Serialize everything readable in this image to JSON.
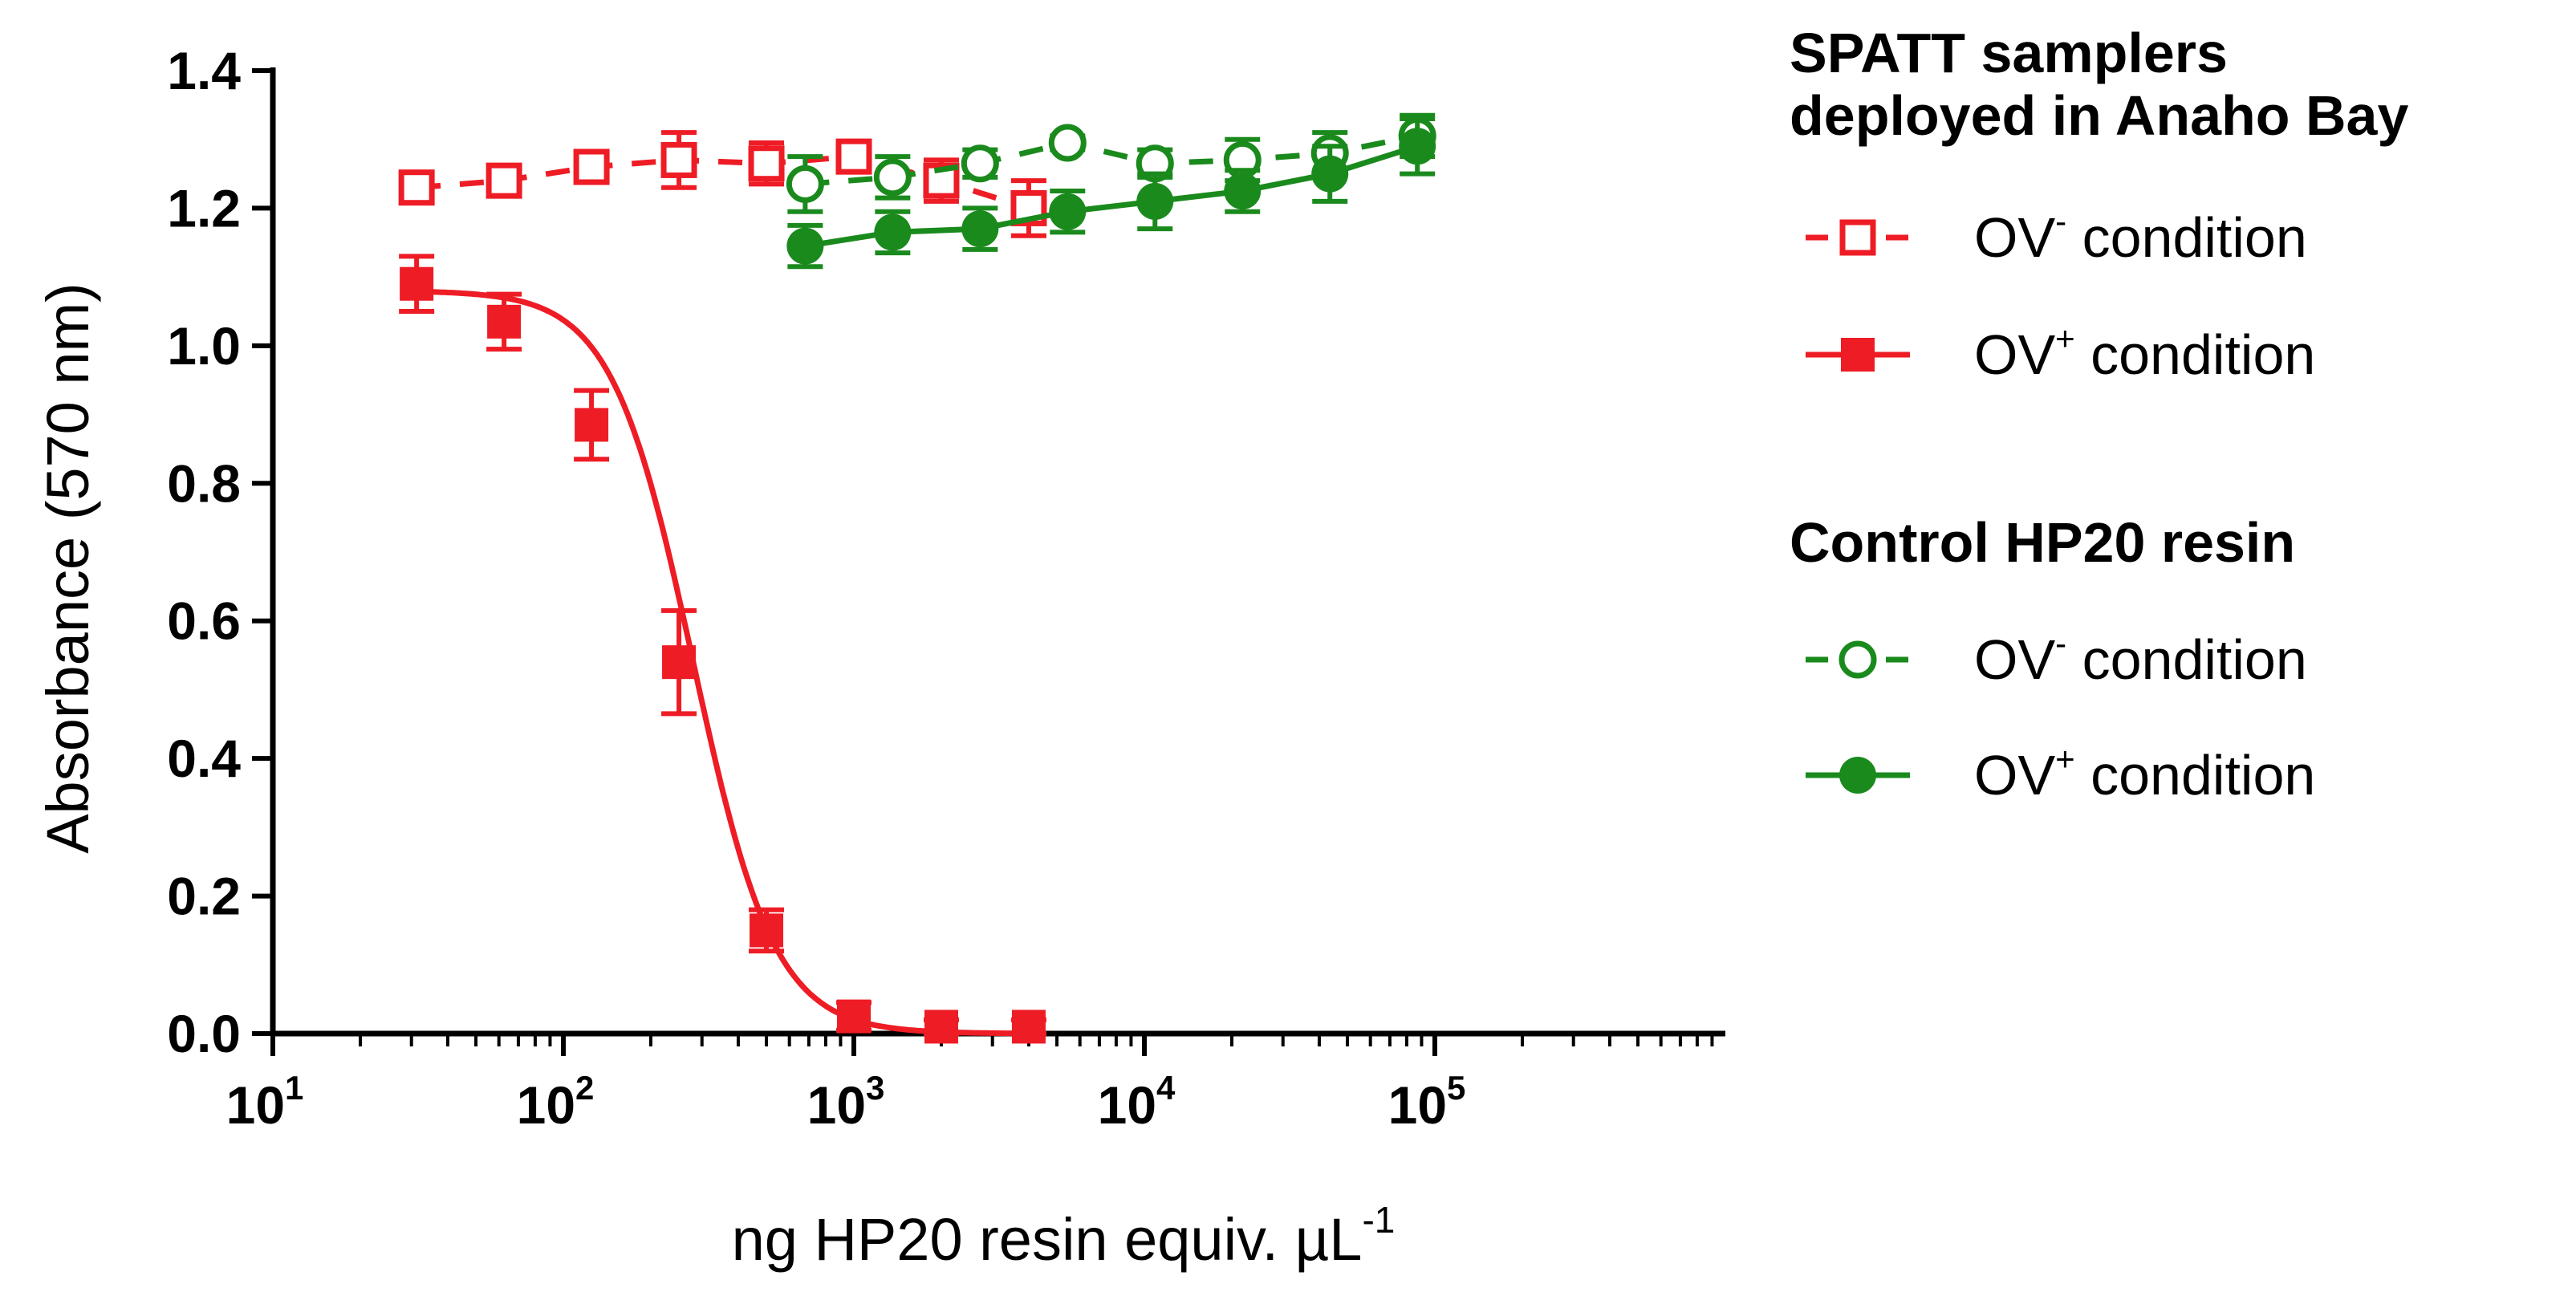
{
  "chart_data": {
    "type": "line",
    "x_scale": "log",
    "xlim": [
      10,
      1000000
    ],
    "ylim": [
      0,
      1.4
    ],
    "grid": false,
    "xlabel": {
      "main": "ng HP20 resin equiv. µL",
      "sup": "-1"
    },
    "ylabel": "Absorbance (570 nm)",
    "y_ticks": [
      "0.0",
      "0.2",
      "0.4",
      "0.6",
      "0.8",
      "1.0",
      "1.2",
      "1.4"
    ],
    "x_ticks": [
      {
        "base": "10",
        "exp": "1"
      },
      {
        "base": "10",
        "exp": "2"
      },
      {
        "base": "10",
        "exp": "3"
      },
      {
        "base": "10",
        "exp": "4"
      },
      {
        "base": "10",
        "exp": "5"
      }
    ],
    "legend_position": "right",
    "legend_groups": [
      {
        "title_line1": "SPATT samplers",
        "title_line2": "deployed in Anaho Bay"
      },
      {
        "title_line1": "Control HP20 resin",
        "title_line2": ""
      }
    ],
    "series": [
      {
        "name": {
          "prefix": "OV",
          "sup": "-",
          "suffix": " condition"
        },
        "group": 0,
        "color": "#ee1c25",
        "marker": "square",
        "filled": false,
        "line": "dashed",
        "x": [
          31.25,
          62.5,
          125,
          250,
          500,
          1000,
          2000,
          4000
        ],
        "y": [
          1.23,
          1.24,
          1.26,
          1.27,
          1.265,
          1.275,
          1.24,
          1.2
        ],
        "err": [
          0.02,
          0.01,
          0.01,
          0.04,
          0.03,
          0.01,
          0.03,
          0.04
        ]
      },
      {
        "name": {
          "prefix": "OV",
          "sup": "+",
          "suffix": " condition"
        },
        "group": 0,
        "color": "#ee1c25",
        "marker": "square",
        "filled": true,
        "line": "solid-fit",
        "x": [
          31.25,
          62.5,
          125,
          250,
          500,
          1000,
          2000,
          4000
        ],
        "y": [
          1.09,
          1.035,
          0.885,
          0.54,
          0.15,
          0.025,
          0.01,
          0.01
        ],
        "err": [
          0.04,
          0.04,
          0.05,
          0.075,
          0.03,
          0.02,
          0.01,
          0.01
        ],
        "fit": {
          "top": 1.08,
          "bottom": 0.0,
          "ec50": 280,
          "hill": 3.1
        }
      },
      {
        "name": {
          "prefix": "OV",
          "sup": "-",
          "suffix": " condition"
        },
        "group": 1,
        "color": "#1a8a1d",
        "marker": "circle",
        "filled": false,
        "line": "dashed",
        "x": [
          680,
          1360,
          2720,
          5440,
          10880,
          21760,
          43520,
          87040
        ],
        "y": [
          1.235,
          1.245,
          1.265,
          1.295,
          1.265,
          1.27,
          1.28,
          1.305
        ],
        "err": [
          0.04,
          0.03,
          0.02,
          0.01,
          0.02,
          0.03,
          0.03,
          0.03
        ]
      },
      {
        "name": {
          "prefix": "OV",
          "sup": "+",
          "suffix": " condition"
        },
        "group": 1,
        "color": "#1a8a1d",
        "marker": "circle",
        "filled": true,
        "line": "solid",
        "x": [
          680,
          1360,
          2720,
          5440,
          10880,
          21760,
          43520,
          87040
        ],
        "y": [
          1.145,
          1.165,
          1.17,
          1.195,
          1.21,
          1.225,
          1.25,
          1.29
        ],
        "err": [
          0.03,
          0.03,
          0.03,
          0.03,
          0.04,
          0.03,
          0.04,
          0.04
        ]
      }
    ]
  }
}
